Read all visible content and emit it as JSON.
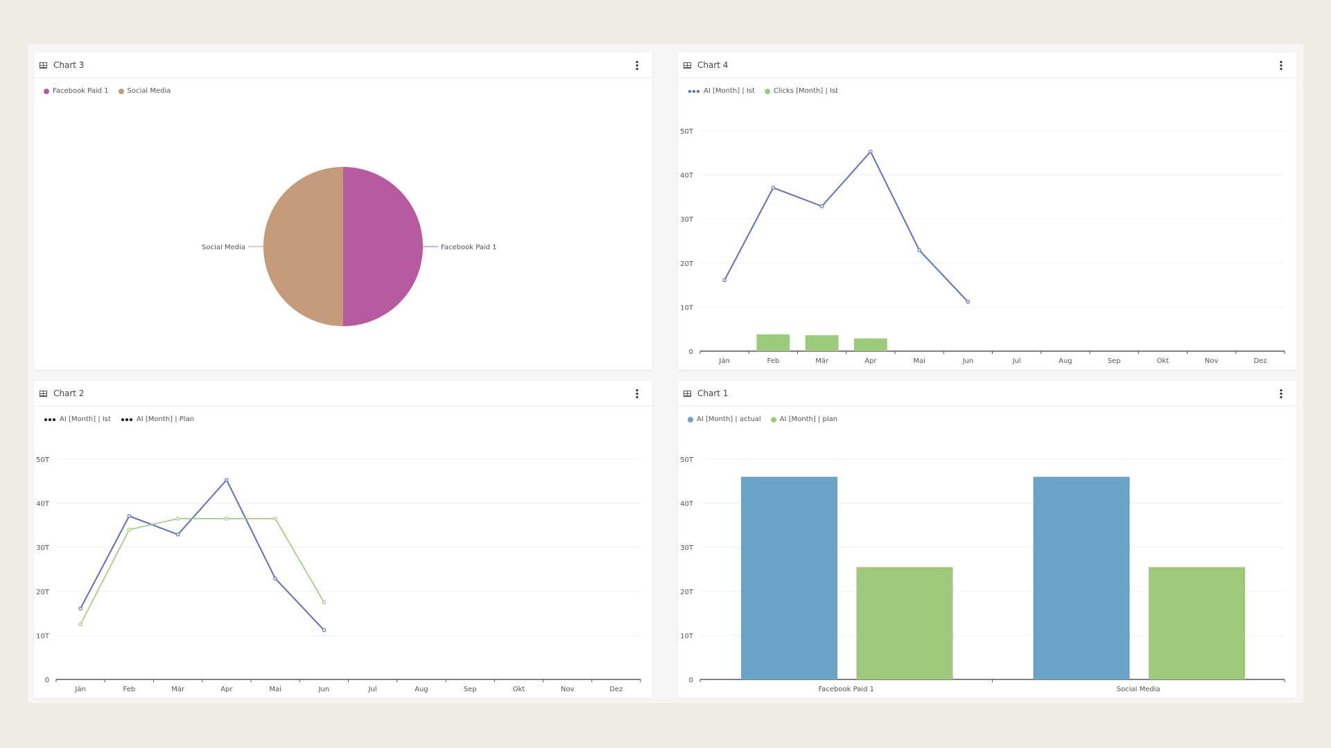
{
  "panels": [
    {
      "title": "Chart 3",
      "legend": [
        {
          "label": "Facebook Paid 1",
          "color": "#b85aa0",
          "style": "dot"
        },
        {
          "label": "Social Media",
          "color": "#c49a78",
          "style": "dot"
        }
      ]
    },
    {
      "title": "Chart 4",
      "legend": [
        {
          "label": "AI [Month] | Ist",
          "color": "#5b6fc4",
          "style": "line"
        },
        {
          "label": "Clicks [Month] | Ist",
          "color": "#9ccb7b",
          "style": "dot"
        }
      ]
    },
    {
      "title": "Chart 2",
      "legend": [
        {
          "label": "AI [Month] | Ist",
          "color": "#222222",
          "style": "line"
        },
        {
          "label": "AI [Month] | Plan",
          "color": "#222222",
          "style": "line"
        }
      ]
    },
    {
      "title": "Chart 1",
      "legend": [
        {
          "label": "AI [Month] | actual",
          "color": "#6aa3c6",
          "style": "dot"
        },
        {
          "label": "AI [Month] | plan",
          "color": "#a0c97e",
          "style": "dot"
        }
      ]
    }
  ],
  "chart_data": [
    {
      "type": "pie",
      "title": "Chart 3",
      "slices": [
        {
          "label": "Facebook Paid 1",
          "value": 50,
          "color": "#b85aa0"
        },
        {
          "label": "Social Media",
          "value": 50,
          "color": "#c49a78"
        }
      ]
    },
    {
      "type": "line",
      "title": "Chart 4",
      "categories": [
        "Jän",
        "Feb",
        "Mär",
        "Apr",
        "Mai",
        "Jun",
        "Jul",
        "Aug",
        "Sep",
        "Okt",
        "Nov",
        "Dez"
      ],
      "yticks": [
        "0",
        "10T",
        "20T",
        "30T",
        "40T",
        "50T"
      ],
      "ylim": [
        0,
        50000
      ],
      "series": [
        {
          "name": "AI [Month] | Ist",
          "kind": "line",
          "color": "#5b6fc4",
          "values": [
            16100,
            37100,
            32900,
            45300,
            22900,
            11200,
            null,
            null,
            null,
            null,
            null,
            null
          ]
        },
        {
          "name": "Clicks [Month] | Ist",
          "kind": "bar",
          "color": "#9ccb7b",
          "values": [
            0,
            3800,
            3600,
            2900,
            0,
            0,
            null,
            null,
            null,
            null,
            null,
            null
          ]
        }
      ]
    },
    {
      "type": "line",
      "title": "Chart 2",
      "categories": [
        "Jän",
        "Feb",
        "Mär",
        "Apr",
        "Mai",
        "Jun",
        "Jul",
        "Aug",
        "Sep",
        "Okt",
        "Nov",
        "Dez"
      ],
      "yticks": [
        "0",
        "10T",
        "20T",
        "30T",
        "40T",
        "50T"
      ],
      "ylim": [
        0,
        50000
      ],
      "series": [
        {
          "name": "AI [Month] | Ist",
          "kind": "line",
          "color": "#5b6fc4",
          "values": [
            16100,
            37100,
            32900,
            45300,
            22900,
            11200,
            null,
            null,
            null,
            null,
            null,
            null
          ]
        },
        {
          "name": "AI [Month] | Plan",
          "kind": "line",
          "color": "#9ccb7b",
          "values": [
            12500,
            34000,
            36500,
            36500,
            36500,
            17500,
            null,
            null,
            null,
            null,
            null,
            null
          ]
        }
      ]
    },
    {
      "type": "bar",
      "title": "Chart 1",
      "categories": [
        "Facebook Paid 1",
        "Social Media"
      ],
      "yticks": [
        "0",
        "10T",
        "20T",
        "30T",
        "40T",
        "50T"
      ],
      "ylim": [
        0,
        50000
      ],
      "series": [
        {
          "name": "AI [Month] | actual",
          "color": "#6aa3c6",
          "values": [
            46000,
            46000
          ]
        },
        {
          "name": "AI [Month] | plan",
          "color": "#a0c97e",
          "values": [
            25500,
            25500
          ]
        }
      ]
    }
  ]
}
